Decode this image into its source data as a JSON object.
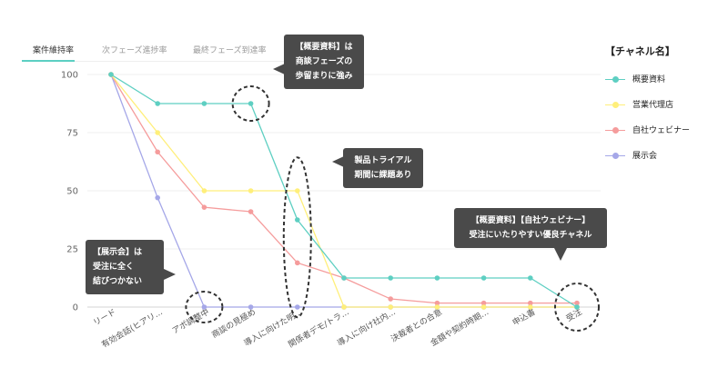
{
  "tabs": [
    {
      "label": "案件維持率",
      "active": true
    },
    {
      "label": "次フェーズ進捗率",
      "active": false
    },
    {
      "label": "最終フェーズ到達率",
      "active": false
    }
  ],
  "legend": {
    "title": "【チャネル名】"
  },
  "callouts": [
    {
      "text": "【概要資料】は\n商談フェーズの\n歩留まりに強み"
    },
    {
      "text": "製品トライアル\n期間に課題あり"
    },
    {
      "text": "【展示会】は\n受注に全く\n結びつかない"
    },
    {
      "text": "【概要資料】【自社ウェビナー】\n受注にいたりやすい優良チャネル"
    }
  ],
  "chart_data": {
    "type": "line",
    "categories": [
      "リード",
      "有効会話(ヒアリ…",
      "アポ調整中",
      "商談の見極め",
      "導入に向けた明…",
      "関係者デモ/トラ…",
      "導入に向け社内…",
      "決裁者との合意",
      "金額や契約時期…",
      "申込書",
      "受注"
    ],
    "yticks": [
      0,
      25,
      50,
      75,
      100
    ],
    "ylim": [
      0,
      100
    ],
    "grid": true,
    "legend_position": "right",
    "series": [
      {
        "name": "概要資料",
        "color": "#5ecfc2",
        "values": [
          100,
          87.5,
          87.5,
          87.5,
          37.5,
          12.5,
          12.5,
          12.5,
          12.5,
          12.5,
          0
        ]
      },
      {
        "name": "営業代理店",
        "color": "#ffef7a",
        "values": [
          100,
          75,
          50,
          50,
          50,
          0,
          0,
          0,
          0,
          0,
          0
        ]
      },
      {
        "name": "自社ウェビナー",
        "color": "#f59c9c",
        "values": [
          100,
          66.7,
          42.9,
          41,
          19,
          12.5,
          3.5,
          1.7,
          1.7,
          1.7,
          1.7
        ]
      },
      {
        "name": "展示会",
        "color": "#a5a7e8",
        "values": [
          100,
          47,
          0,
          0,
          0,
          0,
          0,
          0,
          0,
          0,
          0
        ]
      }
    ]
  }
}
